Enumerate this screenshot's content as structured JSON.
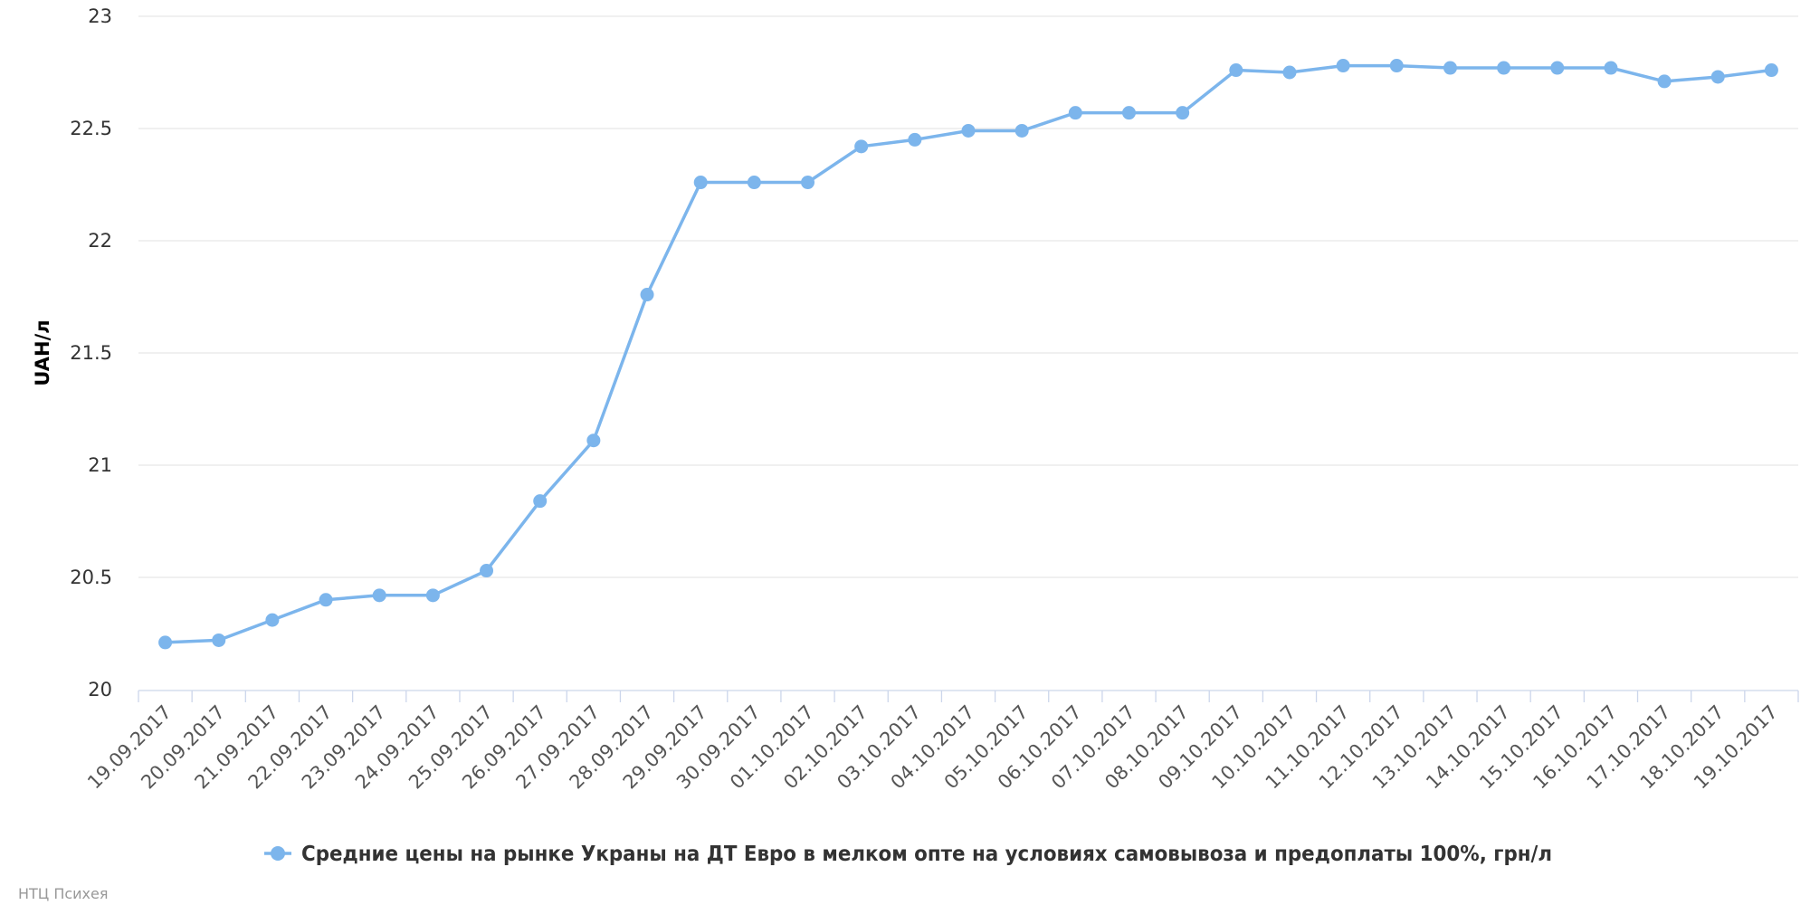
{
  "chart_data": {
    "type": "line",
    "title": "",
    "xlabel": "",
    "ylabel": "UAH/л",
    "ylim": [
      20,
      23
    ],
    "yticks": [
      "20",
      "20.5",
      "21",
      "21.5",
      "22",
      "22.5",
      "23"
    ],
    "grid": true,
    "legend_position": "bottom-center",
    "colors": {
      "series": "#7cb5ec",
      "grid": "#e6e6e6",
      "axis": "#ccd6eb"
    },
    "categories": [
      "19.09.2017",
      "20.09.2017",
      "21.09.2017",
      "22.09.2017",
      "23.09.2017",
      "24.09.2017",
      "25.09.2017",
      "26.09.2017",
      "27.09.2017",
      "28.09.2017",
      "29.09.2017",
      "30.09.2017",
      "01.10.2017",
      "02.10.2017",
      "03.10.2017",
      "04.10.2017",
      "05.10.2017",
      "06.10.2017",
      "07.10.2017",
      "08.10.2017",
      "09.10.2017",
      "10.10.2017",
      "11.10.2017",
      "12.10.2017",
      "13.10.2017",
      "14.10.2017",
      "15.10.2017",
      "16.10.2017",
      "17.10.2017",
      "18.10.2017",
      "19.10.2017"
    ],
    "series": [
      {
        "name": "Средние цены на рынке Украны на ДТ Евро в мелком опте на условиях самовывоза и предоплаты 100%, грн/л",
        "values": [
          20.21,
          20.22,
          20.31,
          20.4,
          20.42,
          20.42,
          20.53,
          20.84,
          21.11,
          21.76,
          22.26,
          22.26,
          22.26,
          22.42,
          22.45,
          22.49,
          22.49,
          22.57,
          22.57,
          22.57,
          22.76,
          22.75,
          22.78,
          22.78,
          22.77,
          22.77,
          22.77,
          22.77,
          22.71,
          22.73,
          22.76
        ]
      }
    ]
  },
  "credit": "НТЦ Психея"
}
